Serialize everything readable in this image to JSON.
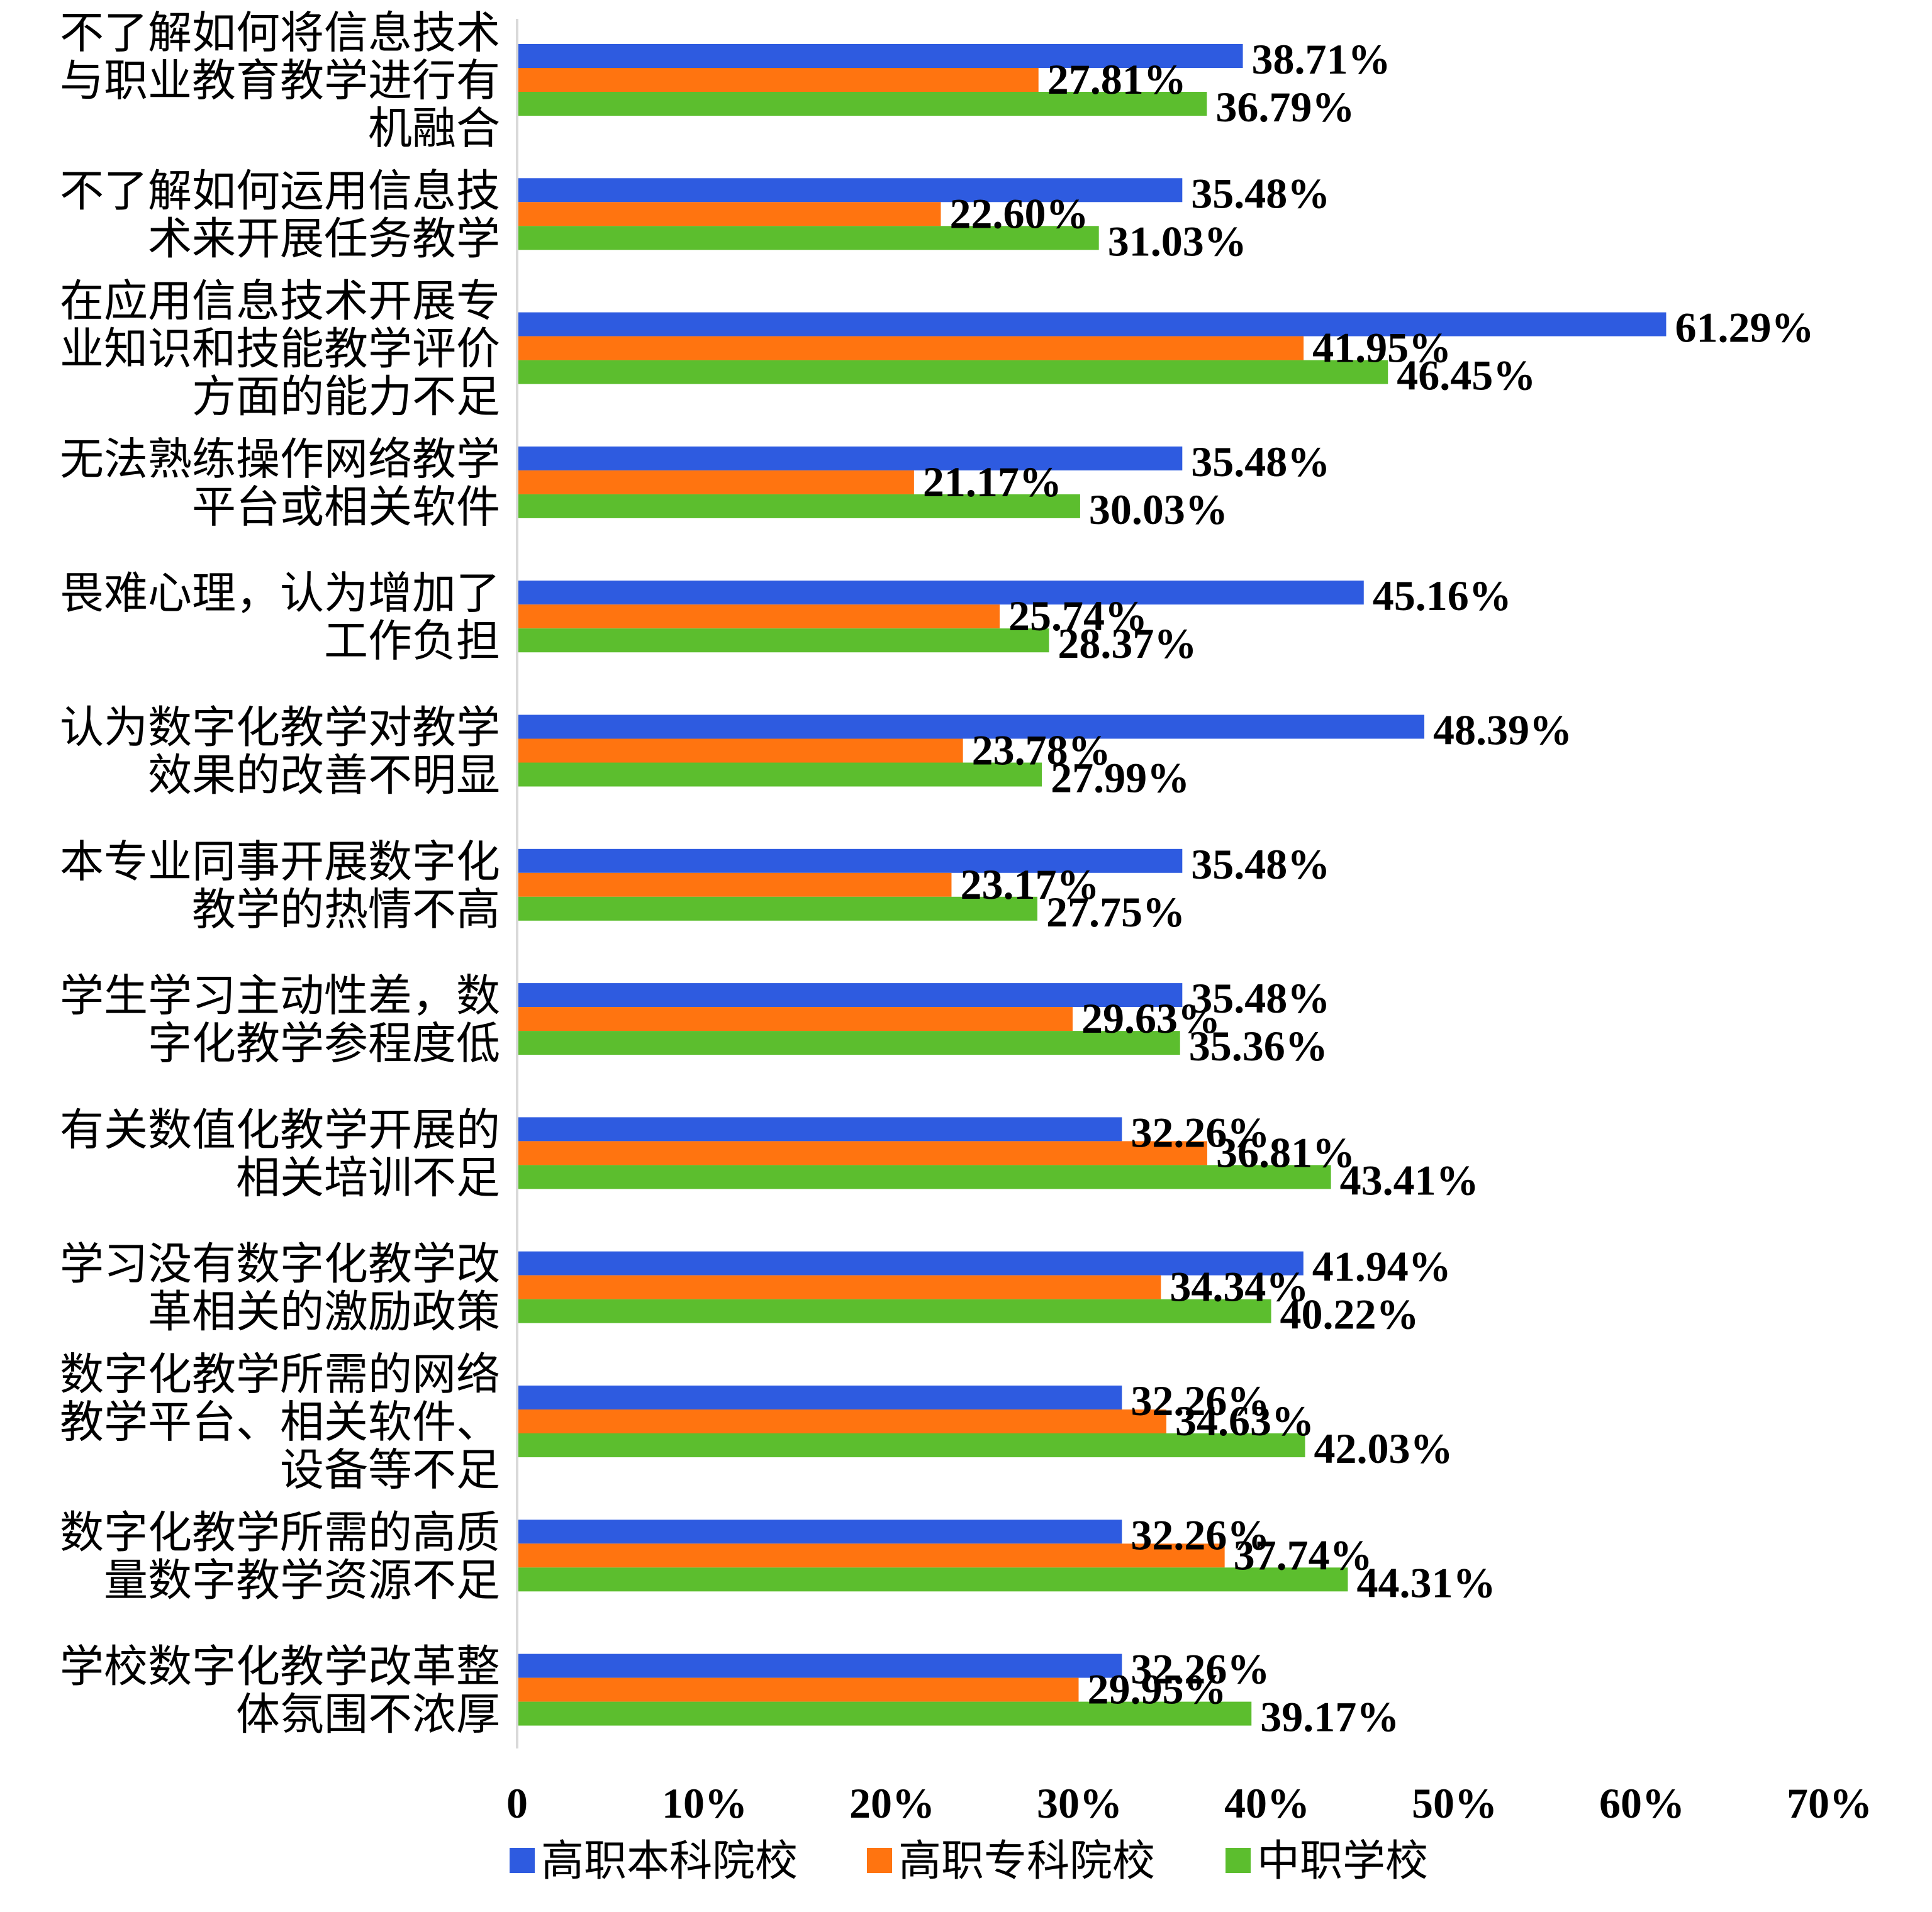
{
  "chart_data": {
    "type": "bar",
    "orientation": "horizontal",
    "categories": [
      [
        "不了解如何将信息技术",
        "与职业教育教学进行有",
        "机融合"
      ],
      [
        "不了解如何运用信息技",
        "术来开展任务教学"
      ],
      [
        "在应用信息技术开展专",
        "业知识和技能教学评价",
        "方面的能力不足"
      ],
      [
        "无法熟练操作网络教学",
        "平台或相关软件"
      ],
      [
        "畏难心理，认为增加了",
        "工作负担"
      ],
      [
        "认为数字化教学对教学",
        "效果的改善不明显"
      ],
      [
        "本专业同事开展数字化",
        "教学的热情不高"
      ],
      [
        "学生学习主动性差，数",
        "字化教学参程度低"
      ],
      [
        "有关数值化教学开展的",
        "相关培训不足"
      ],
      [
        "学习没有数字化教学改",
        "革相关的激励政策"
      ],
      [
        "数字化教学所需的网络",
        "教学平台、相关软件、",
        "设备等不足"
      ],
      [
        "数字化教学所需的高质",
        "量数字教学资源不足"
      ],
      [
        "学校数字化教学改革整",
        "体氛围不浓厚"
      ]
    ],
    "series": [
      {
        "name": "高职本科院校",
        "color": "#2E5BE0",
        "values": [
          38.71,
          35.48,
          61.29,
          35.48,
          45.16,
          48.39,
          35.48,
          35.48,
          32.26,
          41.94,
          32.26,
          32.26,
          32.26
        ],
        "labels": [
          "38.71%",
          "35.48%",
          "61.29%",
          "35.48%",
          "45.16%",
          "48.39%",
          "35.48%",
          "35.48%",
          "32.26%",
          "41.94%",
          "32.26%",
          "32.26%",
          "32.26%"
        ]
      },
      {
        "name": "高职专科院校",
        "color": "#FF7410",
        "values": [
          27.81,
          22.6,
          41.95,
          21.17,
          25.74,
          23.78,
          23.17,
          29.63,
          36.81,
          34.34,
          34.63,
          37.74,
          29.95
        ],
        "labels": [
          "27.81%",
          "22.60%",
          "41.95%",
          "21.17%",
          "25.74%",
          "23.78%",
          "23.17%",
          "29.63%",
          "36.81%",
          "34.34%",
          "34.63%",
          "37.74%",
          "29.95%"
        ]
      },
      {
        "name": "中职学校",
        "color": "#5CBE2E",
        "values": [
          36.79,
          31.03,
          46.45,
          30.03,
          28.37,
          27.99,
          27.75,
          35.36,
          43.41,
          40.22,
          42.03,
          44.31,
          39.17
        ],
        "labels": [
          "36.79%",
          "31.03%",
          "46.45%",
          "30.03%",
          "28.37%",
          "27.99%",
          "27.75%",
          "35.36%",
          "43.41%",
          "40.22%",
          "42.03%",
          "44.31%",
          "39.17%"
        ]
      }
    ],
    "x_ticks": [
      "0",
      "10%",
      "20%",
      "30%",
      "40%",
      "50%",
      "60%",
      "70%"
    ],
    "xlim": [
      0,
      70
    ],
    "grid": false,
    "legend_position": "bottom"
  }
}
